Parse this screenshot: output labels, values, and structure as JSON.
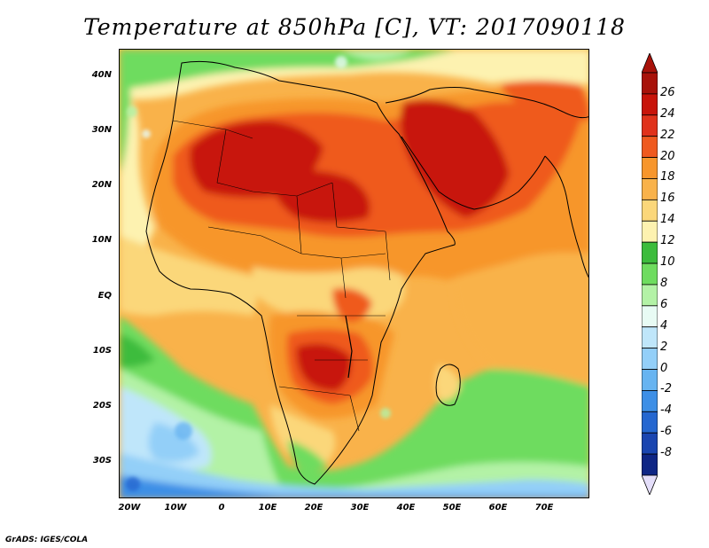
{
  "title": "Temperature at 850hPa [C], VT: 2017090118",
  "lat_labels": [
    "40N",
    "30N",
    "20N",
    "10N",
    "EQ",
    "10S",
    "20S",
    "30S"
  ],
  "lon_labels": [
    "20W",
    "10W",
    "0",
    "10E",
    "20E",
    "30E",
    "40E",
    "50E",
    "60E",
    "70E"
  ],
  "colorbar": {
    "labels": [
      "26",
      "24",
      "22",
      "20",
      "18",
      "16",
      "14",
      "12",
      "10",
      "8",
      "6",
      "4",
      "2",
      "0",
      "-2",
      "-4",
      "-6",
      "-8"
    ],
    "colors": [
      "#c8140a",
      "#e0321b",
      "#ef5a1f",
      "#f7962c",
      "#f9b24a",
      "#fbd77a",
      "#fdf2b0",
      "#3cbc3c",
      "#6edc5f",
      "#b3f2a6",
      "#e8fbf4",
      "#bfe6fa",
      "#93cff8",
      "#67b4f1",
      "#3d8fe6",
      "#2567d0",
      "#1a45b0",
      "#0f2685"
    ],
    "over_color": "#a8120a",
    "under_color": "#e4defa"
  },
  "credit": "GrADS: IGES/COLA"
}
